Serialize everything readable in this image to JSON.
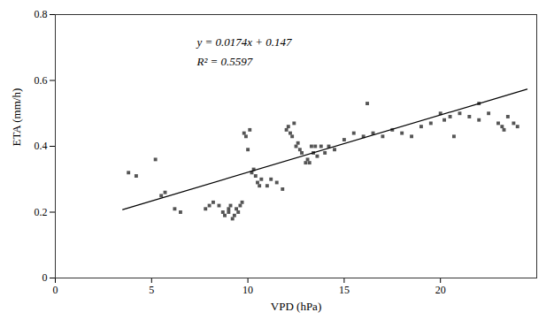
{
  "chart_data": {
    "type": "scatter",
    "xlabel": "VPD (hPa)",
    "ylabel": "ETA (mm/h)",
    "xlim": [
      0,
      25
    ],
    "ylim": [
      0,
      0.8
    ],
    "xticks": [
      0,
      5,
      10,
      15,
      20
    ],
    "yticks": [
      0,
      0.2,
      0.4,
      0.6,
      0.8
    ],
    "annotations": [
      "y = 0.0174x + 0.147",
      "R² = 0.5597"
    ],
    "series": [
      {
        "type": "scatter",
        "color": "#555555",
        "marker": "square",
        "x": [
          3.8,
          4.2,
          5.2,
          5.5,
          5.7,
          6.2,
          6.5,
          7.8,
          8.0,
          8.2,
          8.5,
          8.7,
          8.8,
          9.0,
          9.0,
          9.1,
          9.2,
          9.3,
          9.4,
          9.5,
          9.6,
          9.7,
          9.8,
          9.9,
          10.0,
          10.1,
          10.2,
          10.3,
          10.4,
          10.5,
          10.6,
          10.7,
          11.0,
          11.2,
          11.5,
          11.8,
          12.0,
          12.1,
          12.2,
          12.3,
          12.4,
          12.5,
          12.6,
          12.7,
          12.8,
          13.0,
          13.1,
          13.2,
          13.3,
          13.4,
          13.5,
          13.6,
          13.8,
          14.0,
          14.2,
          14.5,
          15.0,
          15.5,
          16.0,
          16.2,
          16.5,
          17.0,
          17.5,
          18.0,
          18.5,
          19.0,
          19.5,
          20.0,
          20.2,
          20.5,
          20.7,
          21.0,
          21.5,
          22.0,
          22.0,
          22.5,
          23.0,
          23.2,
          23.3,
          23.5,
          23.8,
          24.0
        ],
        "values": [
          0.32,
          0.31,
          0.36,
          0.25,
          0.26,
          0.21,
          0.2,
          0.21,
          0.22,
          0.23,
          0.22,
          0.2,
          0.19,
          0.21,
          0.2,
          0.22,
          0.18,
          0.19,
          0.21,
          0.2,
          0.22,
          0.23,
          0.44,
          0.43,
          0.39,
          0.45,
          0.32,
          0.33,
          0.31,
          0.29,
          0.28,
          0.3,
          0.28,
          0.3,
          0.29,
          0.27,
          0.45,
          0.46,
          0.44,
          0.43,
          0.47,
          0.4,
          0.41,
          0.39,
          0.38,
          0.35,
          0.36,
          0.35,
          0.4,
          0.38,
          0.4,
          0.37,
          0.4,
          0.38,
          0.4,
          0.39,
          0.42,
          0.44,
          0.43,
          0.53,
          0.44,
          0.43,
          0.45,
          0.44,
          0.43,
          0.46,
          0.47,
          0.5,
          0.48,
          0.49,
          0.43,
          0.5,
          0.49,
          0.53,
          0.48,
          0.5,
          0.47,
          0.46,
          0.45,
          0.49,
          0.47,
          0.46
        ]
      },
      {
        "type": "line",
        "color": "#000000",
        "x": [
          3.5,
          24.5
        ],
        "values": [
          0.2079,
          0.5733
        ]
      }
    ]
  }
}
